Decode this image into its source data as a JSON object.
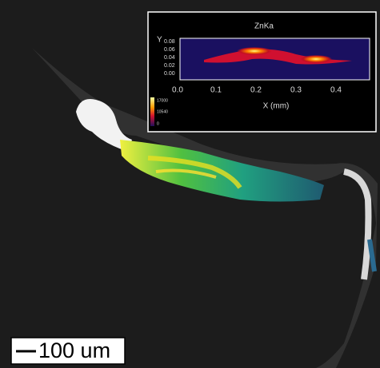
{
  "inset": {
    "title": "ZnKa",
    "y_label": "Y",
    "x_label": "X (mm)",
    "y_ticks": [
      "0.08",
      "0.06",
      "0.04",
      "0.02",
      "0.00"
    ],
    "x_ticks": [
      "0.0",
      "0.1",
      "0.2",
      "0.3",
      "0.4"
    ],
    "colorbar_labels": [
      "17000",
      "10540",
      "0"
    ]
  },
  "scale_bar": {
    "label": "100 um"
  }
}
